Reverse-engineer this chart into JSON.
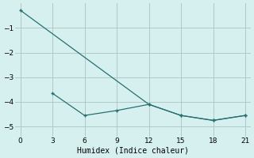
{
  "xlabel": "Humidex (Indice chaleur)",
  "background_color": "#d6f0f0",
  "grid_color": "#b0c8c8",
  "line_color": "#267070",
  "xlim": [
    -0.5,
    21.5
  ],
  "ylim": [
    -5.4,
    -0.0
  ],
  "xticks": [
    0,
    3,
    6,
    9,
    12,
    15,
    18,
    21
  ],
  "yticks": [
    -1,
    -2,
    -3,
    -4,
    -5
  ],
  "line1_x": [
    0,
    12,
    15,
    18,
    21
  ],
  "line1_y": [
    -0.28,
    -4.1,
    -4.55,
    -4.75,
    -4.55
  ],
  "line2_x": [
    3,
    6,
    9,
    12,
    15,
    18,
    21
  ],
  "line2_y": [
    -3.65,
    -4.55,
    -4.35,
    -4.1,
    -4.55,
    -4.75,
    -4.55
  ],
  "marker": "+",
  "markersize": 3,
  "linewidth": 0.9,
  "tick_labelsize": 6.5,
  "xlabel_fontsize": 7
}
